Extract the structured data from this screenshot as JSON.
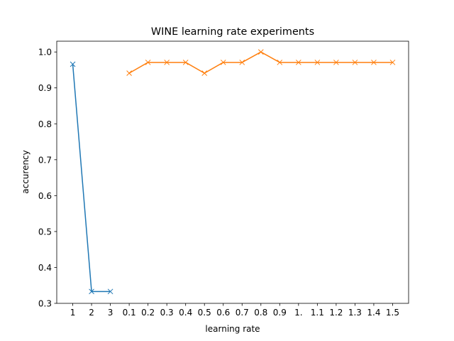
{
  "chart_data": {
    "type": "line",
    "title": "WINE learning rate experiments",
    "xlabel": "learning rate",
    "ylabel": "accurency",
    "categories": [
      "1",
      "2",
      "3",
      "0.1",
      "0.2",
      "0.3",
      "0.4",
      "0.5",
      "0.6",
      "0.7",
      "0.8",
      "0.9",
      "1.",
      "1.1",
      "1.2",
      "1.3",
      "1.4",
      "1.5"
    ],
    "ylim": [
      0.3,
      1.03
    ],
    "yticks": [
      "0.3",
      "0.4",
      "0.5",
      "0.6",
      "0.7",
      "0.8",
      "0.9",
      "1.0"
    ],
    "grid": false,
    "series": [
      {
        "color": "#1f77b4",
        "marker": "x",
        "points": [
          {
            "category": "1",
            "value": 0.966
          },
          {
            "category": "2",
            "value": 0.333
          },
          {
            "category": "3",
            "value": 0.333
          }
        ]
      },
      {
        "color": "#ff7f0e",
        "marker": "x",
        "points": [
          {
            "category": "0.1",
            "value": 0.941
          },
          {
            "category": "0.2",
            "value": 0.971
          },
          {
            "category": "0.3",
            "value": 0.971
          },
          {
            "category": "0.4",
            "value": 0.971
          },
          {
            "category": "0.5",
            "value": 0.941
          },
          {
            "category": "0.6",
            "value": 0.971
          },
          {
            "category": "0.7",
            "value": 0.971
          },
          {
            "category": "0.8",
            "value": 1.0
          },
          {
            "category": "0.9",
            "value": 0.971
          },
          {
            "category": "1.",
            "value": 0.971
          },
          {
            "category": "1.1",
            "value": 0.971
          },
          {
            "category": "1.2",
            "value": 0.971
          },
          {
            "category": "1.3",
            "value": 0.971
          },
          {
            "category": "1.4",
            "value": 0.971
          },
          {
            "category": "1.5",
            "value": 0.971
          }
        ]
      }
    ]
  }
}
